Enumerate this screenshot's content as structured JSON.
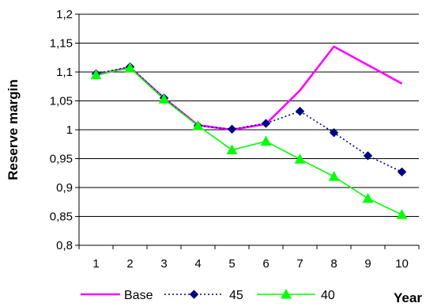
{
  "chart_data": {
    "type": "line",
    "title": "",
    "xlabel": "Year",
    "ylabel": "Reserve margin",
    "x": [
      1,
      2,
      3,
      4,
      5,
      6,
      7,
      8,
      9,
      10
    ],
    "x_tick_labels": [
      "1",
      "2",
      "3",
      "4",
      "5",
      "6",
      "7",
      "8",
      "9",
      "10"
    ],
    "ylim": [
      0.8,
      1.2
    ],
    "y_ticks": [
      0.8,
      0.85,
      0.9,
      0.95,
      1.0,
      1.05,
      1.1,
      1.15,
      1.2
    ],
    "y_tick_labels": [
      "0,8",
      "0,85",
      "0,9",
      "0,95",
      "1",
      "1,05",
      "1,1",
      "1,15",
      "1,2"
    ],
    "grid": "horizontal major gridlines",
    "legend_position": "bottom",
    "series": [
      {
        "name": "Base",
        "values": [
          1.095,
          1.108,
          1.055,
          1.008,
          1.0,
          1.01,
          1.068,
          1.144,
          1.112,
          1.08
        ],
        "color": "#ff00ff",
        "line_style": "solid",
        "marker": "none"
      },
      {
        "name": "45",
        "values": [
          1.097,
          1.109,
          1.055,
          1.007,
          1.001,
          1.011,
          1.032,
          0.995,
          0.955,
          0.927
        ],
        "color": "#000080",
        "line_style": "dotted",
        "marker": "diamond"
      },
      {
        "name": "40",
        "values": [
          1.095,
          1.107,
          1.053,
          1.007,
          0.965,
          0.98,
          0.949,
          0.919,
          0.881,
          0.853
        ],
        "color": "#00ff00",
        "line_style": "solid",
        "marker": "triangle"
      }
    ]
  }
}
